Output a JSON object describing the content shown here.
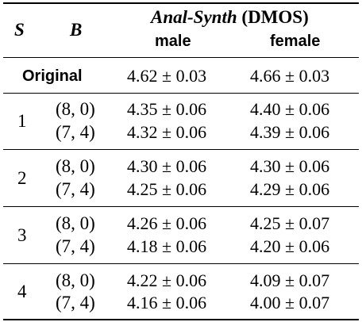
{
  "header": {
    "col_s": "S",
    "col_b": "B",
    "group_title_italic": "Anal-Synth",
    "group_title_rest": " (DMOS)",
    "sub_male": "male",
    "sub_female": "female"
  },
  "original": {
    "label": "Original",
    "male": "4.62 ± 0.03",
    "female": "4.66 ± 0.03"
  },
  "groups": [
    {
      "s": "1",
      "rows": [
        {
          "b": "(8, 0)",
          "male": "4.35 ± 0.06",
          "female": "4.40 ± 0.06"
        },
        {
          "b": "(7, 4)",
          "male": "4.32 ± 0.06",
          "female": "4.39 ± 0.06"
        }
      ]
    },
    {
      "s": "2",
      "rows": [
        {
          "b": "(8, 0)",
          "male": "4.30 ± 0.06",
          "female": "4.30 ± 0.06"
        },
        {
          "b": "(7, 4)",
          "male": "4.25 ± 0.06",
          "female": "4.29 ± 0.06"
        }
      ]
    },
    {
      "s": "3",
      "rows": [
        {
          "b": "(8, 0)",
          "male": "4.26 ± 0.06",
          "female": "4.25 ± 0.07"
        },
        {
          "b": "(7, 4)",
          "male": "4.18 ± 0.06",
          "female": "4.20 ± 0.06"
        }
      ]
    },
    {
      "s": "4",
      "rows": [
        {
          "b": "(8, 0)",
          "male": "4.22 ± 0.06",
          "female": "4.09 ± 0.07"
        },
        {
          "b": "(7, 4)",
          "male": "4.16 ± 0.06",
          "female": "4.00 ± 0.07"
        }
      ]
    }
  ]
}
